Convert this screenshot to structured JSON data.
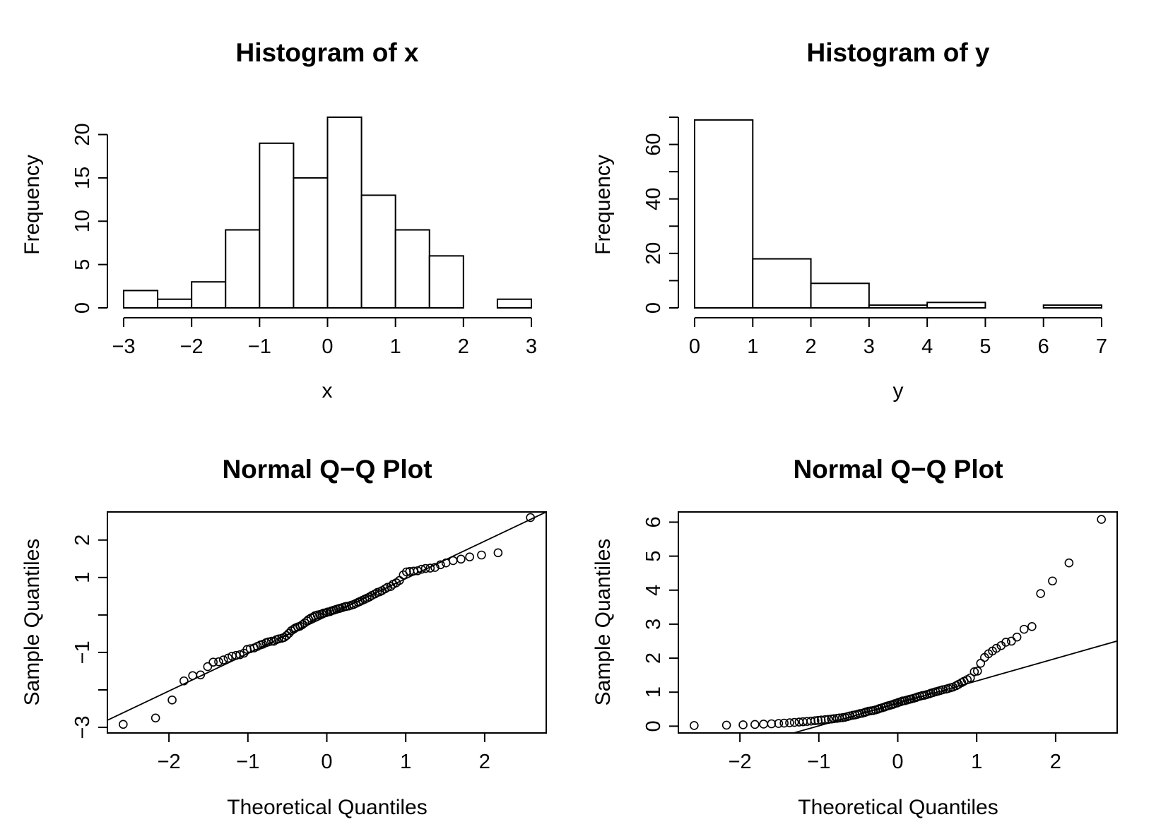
{
  "chart_data": [
    {
      "id": "hist-x",
      "type": "bar",
      "subtype": "histogram",
      "title": "Histogram of x",
      "xlabel": "x",
      "ylabel": "Frequency",
      "breaks": [
        -3,
        -2.5,
        -2,
        -1.5,
        -1,
        -0.5,
        0,
        0.5,
        1,
        1.5,
        2,
        2.5,
        3
      ],
      "counts": [
        2,
        1,
        3,
        9,
        19,
        15,
        22,
        13,
        9,
        6,
        0,
        1
      ],
      "xlim": [
        -3,
        3
      ],
      "ylim": [
        0,
        22
      ],
      "xticks": [
        -3,
        -2,
        -1,
        0,
        1,
        2,
        3
      ],
      "xtick_labels": [
        "−3",
        "−2",
        "−1",
        "0",
        "1",
        "2",
        "3"
      ],
      "yticks": [
        0,
        5,
        10,
        15,
        20
      ],
      "ytick_labels": [
        "0",
        "5",
        "10",
        "15",
        "20"
      ],
      "grid": false
    },
    {
      "id": "hist-y",
      "type": "bar",
      "subtype": "histogram",
      "title": "Histogram of y",
      "xlabel": "y",
      "ylabel": "Frequency",
      "breaks": [
        0,
        1,
        2,
        3,
        4,
        5,
        6,
        7
      ],
      "counts": [
        69,
        18,
        9,
        1,
        2,
        0,
        1
      ],
      "xlim": [
        0,
        7
      ],
      "ylim": [
        0,
        70
      ],
      "xticks": [
        0,
        1,
        2,
        3,
        4,
        5,
        6,
        7
      ],
      "xtick_labels": [
        "0",
        "1",
        "2",
        "3",
        "4",
        "5",
        "6",
        "7"
      ],
      "yticks": [
        0,
        10,
        20,
        30,
        40,
        50,
        60,
        70
      ],
      "ytick_labels": [
        "0",
        "",
        "20",
        "",
        "40",
        "",
        "60",
        ""
      ],
      "grid": false
    },
    {
      "id": "qq-x",
      "type": "scatter",
      "subtype": "qq",
      "title": "Normal Q−Q Plot",
      "xlabel": "Theoretical Quantiles",
      "ylabel": "Sample Quantiles",
      "xlim": [
        -2.78,
        2.78
      ],
      "ylim": [
        -3.15,
        2.75
      ],
      "xticks": [
        -2,
        -1,
        0,
        1,
        2
      ],
      "xtick_labels": [
        "−2",
        "−1",
        "0",
        "1",
        "2"
      ],
      "yticks": [
        -3,
        -2,
        -1,
        0,
        1,
        2
      ],
      "ytick_labels": [
        "−3",
        "",
        "−1",
        "",
        "1",
        "2"
      ],
      "grid": false,
      "reference_line": {
        "intercept": -0.03,
        "slope": 1.0
      },
      "points": [
        [
          -2.58,
          -2.92
        ],
        [
          -2.17,
          -2.75
        ],
        [
          -1.96,
          -2.27
        ],
        [
          -1.81,
          -1.76
        ],
        [
          -1.7,
          -1.62
        ],
        [
          -1.6,
          -1.6
        ],
        [
          -1.51,
          -1.38
        ],
        [
          -1.44,
          -1.26
        ],
        [
          -1.37,
          -1.25
        ],
        [
          -1.31,
          -1.2
        ],
        [
          -1.25,
          -1.15
        ],
        [
          -1.2,
          -1.1
        ],
        [
          -1.15,
          -1.08
        ],
        [
          -1.1,
          -1.06
        ],
        [
          -1.05,
          -1.02
        ],
        [
          -1.01,
          -0.92
        ],
        [
          -0.97,
          -0.9
        ],
        [
          -0.92,
          -0.88
        ],
        [
          -0.88,
          -0.84
        ],
        [
          -0.84,
          -0.8
        ],
        [
          -0.81,
          -0.78
        ],
        [
          -0.77,
          -0.74
        ],
        [
          -0.74,
          -0.72
        ],
        [
          -0.7,
          -0.7
        ],
        [
          -0.67,
          -0.7
        ],
        [
          -0.64,
          -0.66
        ],
        [
          -0.61,
          -0.64
        ],
        [
          -0.57,
          -0.62
        ],
        [
          -0.54,
          -0.6
        ],
        [
          -0.51,
          -0.55
        ],
        [
          -0.48,
          -0.49
        ],
        [
          -0.45,
          -0.42
        ],
        [
          -0.42,
          -0.38
        ],
        [
          -0.4,
          -0.35
        ],
        [
          -0.37,
          -0.32
        ],
        [
          -0.34,
          -0.3
        ],
        [
          -0.31,
          -0.26
        ],
        [
          -0.28,
          -0.21
        ],
        [
          -0.25,
          -0.16
        ],
        [
          -0.23,
          -0.12
        ],
        [
          -0.2,
          -0.08
        ],
        [
          -0.17,
          -0.05
        ],
        [
          -0.15,
          -0.02
        ],
        [
          -0.12,
          0.0
        ],
        [
          -0.09,
          0.01
        ],
        [
          -0.06,
          0.03
        ],
        [
          -0.04,
          0.05
        ],
        [
          -0.01,
          0.06
        ],
        [
          0.01,
          0.08
        ],
        [
          0.04,
          0.09
        ],
        [
          0.06,
          0.11
        ],
        [
          0.09,
          0.13
        ],
        [
          0.12,
          0.15
        ],
        [
          0.15,
          0.17
        ],
        [
          0.17,
          0.18
        ],
        [
          0.2,
          0.2
        ],
        [
          0.23,
          0.22
        ],
        [
          0.25,
          0.23
        ],
        [
          0.28,
          0.24
        ],
        [
          0.31,
          0.26
        ],
        [
          0.34,
          0.28
        ],
        [
          0.37,
          0.31
        ],
        [
          0.4,
          0.34
        ],
        [
          0.42,
          0.36
        ],
        [
          0.45,
          0.39
        ],
        [
          0.48,
          0.42
        ],
        [
          0.51,
          0.45
        ],
        [
          0.54,
          0.48
        ],
        [
          0.57,
          0.52
        ],
        [
          0.61,
          0.56
        ],
        [
          0.64,
          0.6
        ],
        [
          0.67,
          0.62
        ],
        [
          0.7,
          0.65
        ],
        [
          0.74,
          0.7
        ],
        [
          0.77,
          0.74
        ],
        [
          0.81,
          0.76
        ],
        [
          0.84,
          0.82
        ],
        [
          0.88,
          0.86
        ],
        [
          0.92,
          0.92
        ],
        [
          0.97,
          1.07
        ],
        [
          1.01,
          1.15
        ],
        [
          1.05,
          1.16
        ],
        [
          1.1,
          1.17
        ],
        [
          1.15,
          1.18
        ],
        [
          1.2,
          1.22
        ],
        [
          1.25,
          1.24
        ],
        [
          1.31,
          1.25
        ],
        [
          1.37,
          1.27
        ],
        [
          1.44,
          1.34
        ],
        [
          1.51,
          1.39
        ],
        [
          1.6,
          1.45
        ],
        [
          1.7,
          1.49
        ],
        [
          1.81,
          1.55
        ],
        [
          1.96,
          1.6
        ],
        [
          2.17,
          1.66
        ],
        [
          2.58,
          2.6
        ]
      ]
    },
    {
      "id": "qq-y",
      "type": "scatter",
      "subtype": "qq",
      "title": "Normal Q−Q Plot",
      "xlabel": "Theoretical Quantiles",
      "ylabel": "Sample Quantiles",
      "xlim": [
        -2.78,
        2.78
      ],
      "ylim": [
        -0.2,
        6.3
      ],
      "xticks": [
        -2,
        -1,
        0,
        1,
        2
      ],
      "xtick_labels": [
        "−2",
        "−1",
        "0",
        "1",
        "2"
      ],
      "yticks": [
        0,
        1,
        2,
        3,
        4,
        5,
        6
      ],
      "ytick_labels": [
        "0",
        "1",
        "2",
        "3",
        "4",
        "5",
        "6"
      ],
      "grid": false,
      "reference_line": {
        "intercept": 0.67,
        "slope": 0.66
      },
      "points": [
        [
          -2.58,
          0.02
        ],
        [
          -2.17,
          0.03
        ],
        [
          -1.96,
          0.04
        ],
        [
          -1.81,
          0.05
        ],
        [
          -1.7,
          0.06
        ],
        [
          -1.6,
          0.07
        ],
        [
          -1.51,
          0.08
        ],
        [
          -1.44,
          0.09
        ],
        [
          -1.37,
          0.1
        ],
        [
          -1.31,
          0.11
        ],
        [
          -1.25,
          0.12
        ],
        [
          -1.2,
          0.13
        ],
        [
          -1.15,
          0.14
        ],
        [
          -1.1,
          0.15
        ],
        [
          -1.05,
          0.16
        ],
        [
          -1.01,
          0.17
        ],
        [
          -0.97,
          0.18
        ],
        [
          -0.92,
          0.19
        ],
        [
          -0.88,
          0.2
        ],
        [
          -0.84,
          0.21
        ],
        [
          -0.81,
          0.22
        ],
        [
          -0.77,
          0.23
        ],
        [
          -0.74,
          0.24
        ],
        [
          -0.7,
          0.25
        ],
        [
          -0.67,
          0.26
        ],
        [
          -0.64,
          0.28
        ],
        [
          -0.61,
          0.3
        ],
        [
          -0.57,
          0.32
        ],
        [
          -0.54,
          0.33
        ],
        [
          -0.51,
          0.35
        ],
        [
          -0.48,
          0.37
        ],
        [
          -0.45,
          0.38
        ],
        [
          -0.42,
          0.4
        ],
        [
          -0.4,
          0.42
        ],
        [
          -0.37,
          0.44
        ],
        [
          -0.34,
          0.45
        ],
        [
          -0.31,
          0.46
        ],
        [
          -0.28,
          0.48
        ],
        [
          -0.25,
          0.5
        ],
        [
          -0.23,
          0.52
        ],
        [
          -0.2,
          0.54
        ],
        [
          -0.17,
          0.56
        ],
        [
          -0.15,
          0.58
        ],
        [
          -0.12,
          0.6
        ],
        [
          -0.09,
          0.62
        ],
        [
          -0.06,
          0.64
        ],
        [
          -0.04,
          0.66
        ],
        [
          -0.01,
          0.68
        ],
        [
          0.01,
          0.7
        ],
        [
          0.04,
          0.72
        ],
        [
          0.06,
          0.74
        ],
        [
          0.09,
          0.75
        ],
        [
          0.12,
          0.77
        ],
        [
          0.15,
          0.79
        ],
        [
          0.17,
          0.8
        ],
        [
          0.2,
          0.82
        ],
        [
          0.23,
          0.84
        ],
        [
          0.25,
          0.86
        ],
        [
          0.28,
          0.88
        ],
        [
          0.31,
          0.9
        ],
        [
          0.34,
          0.91
        ],
        [
          0.37,
          0.93
        ],
        [
          0.4,
          0.95
        ],
        [
          0.42,
          0.97
        ],
        [
          0.45,
          0.99
        ],
        [
          0.48,
          1.01
        ],
        [
          0.51,
          1.03
        ],
        [
          0.54,
          1.05
        ],
        [
          0.57,
          1.07
        ],
        [
          0.61,
          1.09
        ],
        [
          0.64,
          1.11
        ],
        [
          0.67,
          1.13
        ],
        [
          0.7,
          1.15
        ],
        [
          0.74,
          1.19
        ],
        [
          0.77,
          1.23
        ],
        [
          0.81,
          1.28
        ],
        [
          0.84,
          1.32
        ],
        [
          0.88,
          1.37
        ],
        [
          0.92,
          1.42
        ],
        [
          0.97,
          1.6
        ],
        [
          1.01,
          1.62
        ],
        [
          1.05,
          1.85
        ],
        [
          1.1,
          2.02
        ],
        [
          1.15,
          2.13
        ],
        [
          1.2,
          2.21
        ],
        [
          1.25,
          2.29
        ],
        [
          1.31,
          2.37
        ],
        [
          1.37,
          2.47
        ],
        [
          1.44,
          2.5
        ],
        [
          1.51,
          2.62
        ],
        [
          1.6,
          2.85
        ],
        [
          1.7,
          2.93
        ],
        [
          1.81,
          3.9
        ],
        [
          1.96,
          4.27
        ],
        [
          2.17,
          4.8
        ],
        [
          2.58,
          6.08
        ]
      ]
    }
  ]
}
